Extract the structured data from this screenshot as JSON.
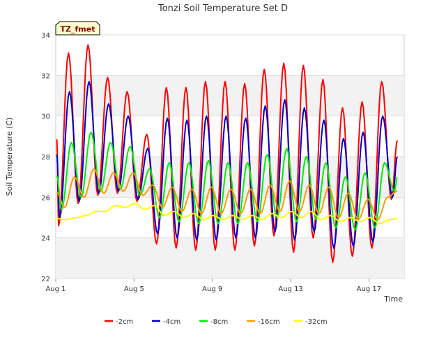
{
  "chart_data": {
    "type": "line",
    "title": "Tonzi Soil Temperature Set D",
    "xlabel": "Time",
    "ylabel": "Soil Temperature (C)",
    "site_badge": "TZ_fmet",
    "xlim": [
      0,
      17.8
    ],
    "ylim": [
      22,
      34
    ],
    "yticks": [
      22,
      24,
      26,
      28,
      30,
      32,
      34
    ],
    "xticks": [
      {
        "value": 0,
        "label": "Aug 1"
      },
      {
        "value": 4,
        "label": "Aug 5"
      },
      {
        "value": 8,
        "label": "Aug 9"
      },
      {
        "value": 12,
        "label": "Aug 13"
      },
      {
        "value": 16,
        "label": "Aug 17"
      }
    ],
    "grid": true,
    "legend_position": "bottom",
    "series": [
      {
        "name": "-2cm",
        "color": "#ff0000",
        "phase": 0.15,
        "min": [
          24.6,
          25.7,
          26.1,
          26.2,
          25.8,
          23.7,
          23.5,
          23.4,
          23.4,
          23.4,
          23.6,
          24.1,
          23.3,
          24.0,
          22.8,
          23.1,
          23.5,
          25.9
        ],
        "max": [
          33.1,
          33.5,
          31.9,
          31.2,
          29.1,
          31.4,
          31.4,
          31.7,
          31.7,
          31.6,
          32.3,
          32.6,
          32.5,
          31.8,
          30.4,
          30.7,
          31.7,
          31.7
        ]
      },
      {
        "name": "-4cm",
        "color": "#0000cc",
        "phase": 0.2,
        "min": [
          25.0,
          25.8,
          26.2,
          26.3,
          25.9,
          24.2,
          24.0,
          23.9,
          23.9,
          24.0,
          24.0,
          24.3,
          23.9,
          24.3,
          23.5,
          23.6,
          23.8,
          26.0
        ],
        "max": [
          31.2,
          31.7,
          30.6,
          30.0,
          28.4,
          29.9,
          29.8,
          30.0,
          30.0,
          29.9,
          30.5,
          30.8,
          30.4,
          29.8,
          28.9,
          29.2,
          30.0,
          30.0
        ]
      },
      {
        "name": "-8cm",
        "color": "#00ee00",
        "phase": 0.3,
        "min": [
          25.4,
          26.0,
          26.3,
          26.4,
          26.1,
          25.0,
          24.8,
          24.7,
          24.7,
          24.7,
          24.8,
          25.0,
          24.8,
          24.9,
          24.5,
          24.4,
          24.5,
          26.3
        ],
        "max": [
          28.7,
          29.2,
          28.7,
          28.5,
          27.4,
          27.7,
          27.7,
          27.8,
          27.7,
          27.7,
          28.1,
          28.4,
          28.0,
          27.7,
          27.0,
          27.2,
          27.7,
          27.7
        ]
      },
      {
        "name": "-16cm",
        "color": "#ff9900",
        "phase": 0.45,
        "min": [
          25.5,
          26.0,
          26.2,
          26.3,
          26.1,
          25.5,
          25.3,
          25.2,
          25.2,
          25.2,
          25.2,
          25.3,
          25.3,
          25.2,
          25.0,
          24.9,
          24.9,
          26.3
        ],
        "max": [
          27.0,
          27.4,
          27.2,
          27.2,
          26.6,
          26.5,
          26.4,
          26.5,
          26.4,
          26.4,
          26.6,
          26.8,
          26.6,
          26.5,
          26.2,
          25.9,
          26.0,
          26.3
        ]
      },
      {
        "name": "-32cm",
        "color": "#ffff00",
        "phase": 0.55,
        "min": [
          24.9,
          25.1,
          25.3,
          25.5,
          25.4,
          25.1,
          25.0,
          24.9,
          24.9,
          24.9,
          24.9,
          25.0,
          25.0,
          24.9,
          24.8,
          24.8,
          24.7,
          24.9
        ],
        "max": [
          25.0,
          25.3,
          25.6,
          25.7,
          25.6,
          25.3,
          25.2,
          25.1,
          25.1,
          25.1,
          25.2,
          25.3,
          25.3,
          25.1,
          25.0,
          25.0,
          24.9,
          25.0
        ]
      }
    ]
  }
}
